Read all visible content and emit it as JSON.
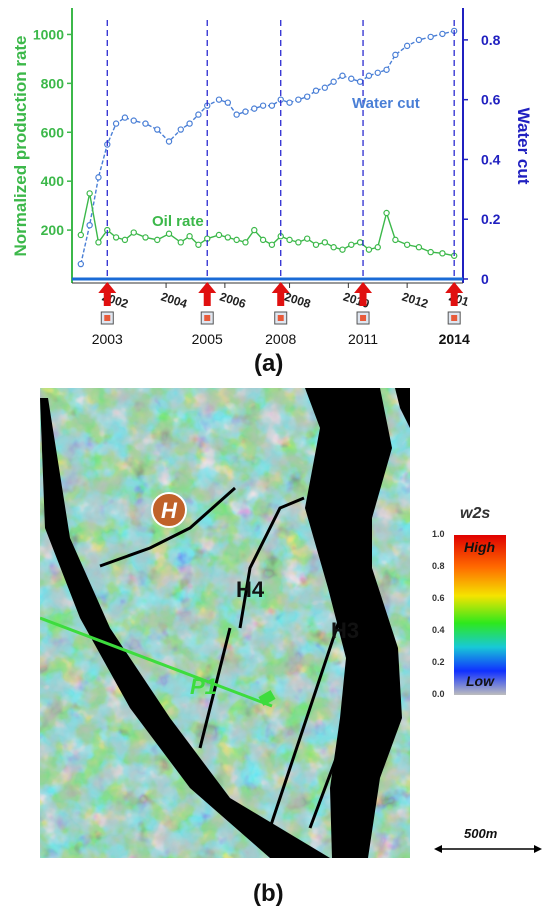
{
  "figure": {
    "panel_a_label": "(a)",
    "panel_b_label": "(b)"
  },
  "chart_data": {
    "type": "line",
    "y_left_label": "Normalized production rate",
    "y_right_label": "Water cut",
    "y_left_ticks": [
      "200",
      "400",
      "600",
      "800",
      "1000"
    ],
    "y_right_ticks": [
      "0",
      "0.2",
      "0.4",
      "0.6",
      "0.8"
    ],
    "x_ticks": [
      "2002",
      "2004",
      "2006",
      "2008",
      "2010",
      "2012",
      "201"
    ],
    "ylim_left": [
      0,
      1100
    ],
    "ylim_right": [
      0,
      0.9
    ],
    "series": [
      {
        "name": "Water cut",
        "axis": "right",
        "color": "#4a7fd6",
        "x": [
          2001.3,
          2001.6,
          2001.9,
          2002.2,
          2002.5,
          2002.8,
          2003.1,
          2003.5,
          2003.9,
          2004.3,
          2004.7,
          2005.0,
          2005.3,
          2005.6,
          2006.0,
          2006.3,
          2006.6,
          2006.9,
          2007.2,
          2007.5,
          2007.8,
          2008.1,
          2008.4,
          2008.7,
          2009.0,
          2009.3,
          2009.6,
          2009.9,
          2010.2,
          2010.5,
          2010.8,
          2011.1,
          2011.4,
          2011.7,
          2012.0,
          2012.4,
          2012.8,
          2013.2,
          2013.6,
          2014.0
        ],
        "values": [
          0.05,
          0.18,
          0.34,
          0.45,
          0.52,
          0.54,
          0.53,
          0.52,
          0.5,
          0.46,
          0.5,
          0.52,
          0.55,
          0.58,
          0.6,
          0.59,
          0.55,
          0.56,
          0.57,
          0.58,
          0.58,
          0.6,
          0.59,
          0.6,
          0.61,
          0.63,
          0.64,
          0.66,
          0.68,
          0.67,
          0.66,
          0.68,
          0.69,
          0.7,
          0.75,
          0.78,
          0.8,
          0.81,
          0.82,
          0.83
        ]
      },
      {
        "name": "Oil rate",
        "axis": "left",
        "color": "#3cb84a",
        "x": [
          2001.3,
          2001.6,
          2001.9,
          2002.2,
          2002.5,
          2002.8,
          2003.1,
          2003.5,
          2003.9,
          2004.3,
          2004.7,
          2005.0,
          2005.3,
          2005.6,
          2006.0,
          2006.3,
          2006.6,
          2006.9,
          2007.2,
          2007.5,
          2007.8,
          2008.1,
          2008.4,
          2008.7,
          2009.0,
          2009.3,
          2009.6,
          2009.9,
          2010.2,
          2010.5,
          2010.8,
          2011.1,
          2011.4,
          2011.7,
          2012.0,
          2012.4,
          2012.8,
          2013.2,
          2013.6,
          2014.0
        ],
        "values": [
          180,
          350,
          150,
          200,
          170,
          160,
          190,
          170,
          160,
          185,
          150,
          175,
          140,
          165,
          180,
          170,
          160,
          150,
          200,
          160,
          140,
          175,
          160,
          150,
          165,
          140,
          150,
          130,
          120,
          140,
          150,
          120,
          130,
          270,
          160,
          140,
          130,
          110,
          105,
          95
        ]
      }
    ],
    "annotations": [
      "Water cut",
      "Oil rate"
    ],
    "survey_years": [
      "2003",
      "2005",
      "2008",
      "2011",
      "2014"
    ],
    "survey_marker_x": [
      2002.2,
      2005.6,
      2008.1,
      2010.9,
      2014.0
    ]
  },
  "map": {
    "colorbar_title": "w2s",
    "colorbar_ticks": [
      "1.0",
      "0.8",
      "0.6",
      "0.4",
      "0.2",
      "0.0"
    ],
    "colorbar_high": "High",
    "colorbar_low": "Low",
    "labels": {
      "h": "H",
      "h4": "H4",
      "h3": "H3",
      "p1": "P1"
    },
    "scale_bar": "500m",
    "colors": {
      "fault": "#000000",
      "well_path": "#3ddc3d",
      "marker_fill": "#c0622a"
    }
  }
}
